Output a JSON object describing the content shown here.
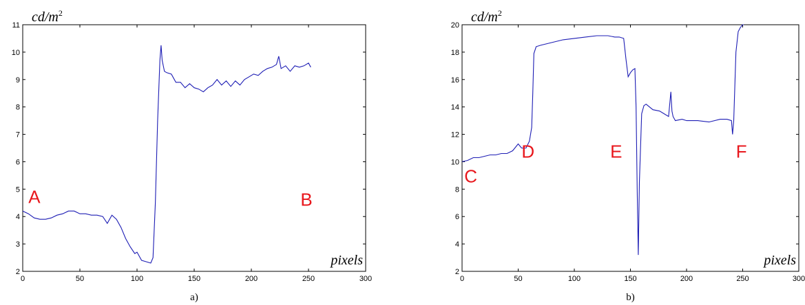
{
  "chart_data": [
    {
      "type": "line",
      "caption": "a)",
      "ylabel": "cd/m",
      "ylabel_exp": "2",
      "xlabel": "pixels",
      "xlim": [
        0,
        300
      ],
      "ylim": [
        2,
        11
      ],
      "xticks": [
        0,
        50,
        100,
        150,
        200,
        250,
        300
      ],
      "yticks": [
        2,
        3,
        4,
        5,
        6,
        7,
        8,
        9,
        10,
        11
      ],
      "grid": false,
      "line_color": "#1c1cb4",
      "label_color": "#e8171c",
      "annotations": [
        {
          "text": "A",
          "x": 5,
          "y": 4.5
        },
        {
          "text": "B",
          "x": 243,
          "y": 4.4
        }
      ],
      "series": [
        {
          "x": [
            0,
            5,
            10,
            15,
            20,
            25,
            30,
            35,
            40,
            45,
            50,
            55,
            60,
            65,
            70,
            74,
            78,
            82,
            86,
            90,
            94,
            98,
            100,
            104,
            108,
            112,
            114,
            116,
            118,
            120,
            121,
            122,
            124,
            126,
            130,
            134,
            138,
            142,
            146,
            150,
            154,
            158,
            162,
            166,
            170,
            174,
            178,
            182,
            186,
            190,
            194,
            198,
            202,
            206,
            210,
            214,
            218,
            222,
            224,
            226,
            230,
            234,
            238,
            242,
            246,
            250,
            252
          ],
          "values": [
            4.2,
            4.1,
            3.95,
            3.9,
            3.9,
            3.95,
            4.05,
            4.1,
            4.2,
            4.2,
            4.1,
            4.1,
            4.05,
            4.05,
            4.0,
            3.75,
            4.05,
            3.9,
            3.6,
            3.2,
            2.9,
            2.65,
            2.7,
            2.4,
            2.35,
            2.3,
            2.5,
            4.5,
            7.5,
            9.7,
            10.25,
            9.7,
            9.3,
            9.25,
            9.2,
            8.9,
            8.9,
            8.7,
            8.85,
            8.7,
            8.65,
            8.55,
            8.7,
            8.8,
            9.0,
            8.8,
            8.95,
            8.75,
            8.95,
            8.8,
            9.0,
            9.1,
            9.2,
            9.15,
            9.3,
            9.4,
            9.45,
            9.55,
            9.85,
            9.4,
            9.5,
            9.3,
            9.5,
            9.45,
            9.5,
            9.6,
            9.45
          ]
        }
      ]
    },
    {
      "type": "line",
      "caption": "b)",
      "ylabel": "cd/m",
      "ylabel_exp": "2",
      "xlabel": "pixels",
      "xlim": [
        0,
        300
      ],
      "ylim": [
        2,
        20
      ],
      "xticks": [
        0,
        50,
        100,
        150,
        200,
        250,
        300
      ],
      "yticks": [
        2,
        4,
        6,
        8,
        10,
        12,
        14,
        16,
        18,
        20
      ],
      "grid": false,
      "line_color": "#1c1cb4",
      "label_color": "#e8171c",
      "annotations": [
        {
          "text": "C",
          "x": 2,
          "y": 8.5
        },
        {
          "text": "D",
          "x": 53,
          "y": 10.3
        },
        {
          "text": "E",
          "x": 132,
          "y": 10.3
        },
        {
          "text": "F",
          "x": 244,
          "y": 10.3
        }
      ],
      "series": [
        {
          "x": [
            0,
            5,
            10,
            15,
            20,
            25,
            30,
            35,
            40,
            45,
            50,
            53,
            57,
            60,
            62,
            63,
            64,
            66,
            70,
            80,
            90,
            100,
            110,
            120,
            130,
            136,
            140,
            144,
            146,
            148,
            150,
            152,
            154,
            155,
            156,
            157,
            158,
            160,
            162,
            164,
            170,
            176,
            180,
            184,
            186,
            187,
            188,
            190,
            196,
            200,
            210,
            220,
            230,
            236,
            240,
            241,
            242,
            244,
            246,
            248,
            250,
            251
          ],
          "values": [
            10.0,
            10.1,
            10.3,
            10.3,
            10.4,
            10.5,
            10.5,
            10.6,
            10.6,
            10.8,
            11.3,
            11.0,
            11.0,
            11.5,
            12.5,
            15.0,
            17.9,
            18.4,
            18.5,
            18.7,
            18.9,
            19.0,
            19.1,
            19.2,
            19.2,
            19.1,
            19.1,
            19.0,
            17.5,
            16.2,
            16.5,
            16.7,
            16.8,
            14.0,
            8.0,
            3.2,
            8.5,
            13.5,
            14.1,
            14.2,
            13.8,
            13.7,
            13.5,
            13.3,
            15.1,
            13.7,
            13.3,
            13.0,
            13.1,
            13.0,
            13.0,
            12.9,
            13.1,
            13.1,
            13.0,
            12.0,
            13.0,
            18.0,
            19.5,
            19.8,
            20.0,
            20.0
          ]
        }
      ]
    }
  ]
}
